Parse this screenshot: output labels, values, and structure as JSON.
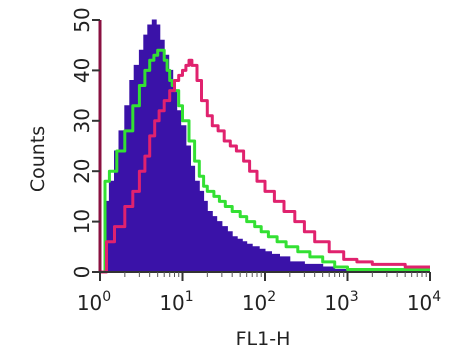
{
  "chart_data": {
    "type": "area",
    "xlabel": "FL1-H",
    "ylabel": "Counts",
    "x_scale": "log",
    "xlim": [
      1,
      10000
    ],
    "ylim": [
      0,
      50
    ],
    "x_ticks": [
      {
        "base": "10",
        "exp": "0",
        "value": 1
      },
      {
        "base": "10",
        "exp": "1",
        "value": 10
      },
      {
        "base": "10",
        "exp": "2",
        "value": 100
      },
      {
        "base": "10",
        "exp": "3",
        "value": 1000
      },
      {
        "base": "10",
        "exp": "4",
        "value": 10000
      }
    ],
    "y_ticks": [
      "0",
      "10",
      "20",
      "30",
      "40",
      "50"
    ],
    "grid": false,
    "series": [
      {
        "style": "filled",
        "color": "#3a12a8",
        "x": [
          1.0,
          1.15,
          1.3,
          1.5,
          1.7,
          2.0,
          2.3,
          2.6,
          3.0,
          3.4,
          3.8,
          4.3,
          4.8,
          5.3,
          6.0,
          6.8,
          7.6,
          8.5,
          9.5,
          11,
          12.5,
          14,
          16,
          18,
          20,
          23,
          26,
          30,
          35,
          40,
          46,
          53,
          60,
          70,
          85,
          100,
          120,
          150,
          200,
          300,
          500,
          700,
          1000,
          10000
        ],
        "y": [
          0,
          14,
          18,
          24,
          28,
          33,
          38,
          41,
          44,
          47,
          49,
          50,
          49,
          46,
          43,
          40,
          36,
          32,
          29,
          25,
          21,
          18,
          16,
          14,
          12,
          11,
          10,
          9,
          8,
          7,
          6.5,
          6,
          5.5,
          5,
          4.5,
          4,
          3.5,
          3,
          2,
          1.5,
          1,
          0.5,
          0,
          0
        ]
      },
      {
        "style": "line",
        "color": "#33e033",
        "x": [
          1.0,
          1.15,
          1.3,
          1.6,
          2.0,
          2.5,
          3.0,
          3.5,
          4.0,
          4.5,
          5.0,
          5.5,
          6.0,
          6.5,
          7.0,
          7.5,
          8.0,
          9.0,
          10,
          12,
          14,
          16,
          18,
          20,
          24,
          28,
          33,
          40,
          50,
          60,
          75,
          90,
          110,
          140,
          180,
          250,
          350,
          500,
          700,
          1000,
          10000
        ],
        "y": [
          0,
          18,
          20,
          24,
          28,
          33,
          37,
          40,
          42,
          43,
          44,
          44,
          42,
          40,
          38,
          37,
          36,
          33,
          30,
          26,
          22,
          19,
          17,
          16,
          15,
          14,
          13,
          12,
          11,
          10,
          9,
          8,
          7,
          6,
          5,
          4,
          3,
          2,
          1,
          0.5,
          0.5
        ]
      },
      {
        "style": "line",
        "color": "#e0226e",
        "x": [
          1.0,
          1.2,
          1.5,
          2.0,
          2.5,
          3.0,
          3.5,
          4.0,
          4.6,
          5.2,
          6.0,
          7.0,
          8.0,
          9.0,
          10,
          11,
          12,
          13,
          15,
          17,
          20,
          23,
          27,
          32,
          38,
          45,
          55,
          65,
          80,
          100,
          130,
          170,
          230,
          300,
          400,
          600,
          900,
          1300,
          2000,
          3000,
          5000,
          10000
        ],
        "y": [
          0,
          6,
          9,
          13,
          16,
          20,
          23,
          27,
          30,
          32,
          34,
          36,
          38,
          39,
          40,
          41,
          42,
          41,
          38,
          34,
          31,
          29,
          28,
          26,
          25,
          24,
          22,
          20,
          18,
          16,
          14,
          12,
          10,
          8,
          6,
          4,
          2.5,
          2,
          1.5,
          1.5,
          1,
          1
        ]
      }
    ]
  }
}
